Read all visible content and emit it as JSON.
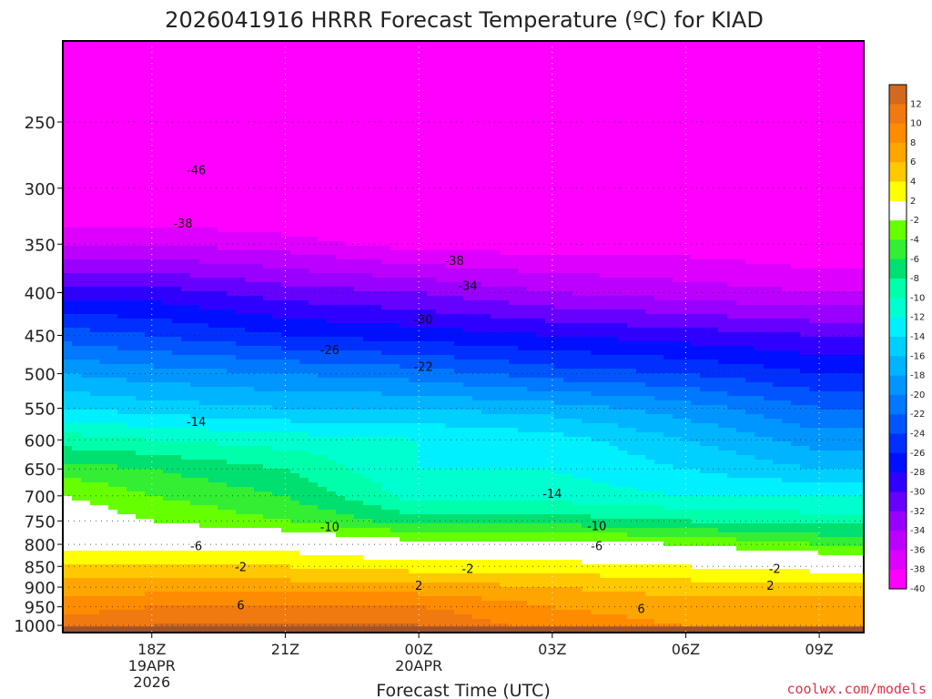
{
  "chart_data": {
    "type": "heatmap",
    "title": "2026041916 HRRR Forecast Temperature (ºC) for KIAD",
    "xlabel": "Forecast Time (UTC)",
    "ylabel": "",
    "credit": "coolwx.com/models",
    "y_scale": "log-pressure",
    "y_axis_inverted": true,
    "ylim": [
      1020,
      200
    ],
    "y_ticks": [
      "250",
      "300",
      "350",
      "400",
      "450",
      "500",
      "550",
      "600",
      "650",
      "700",
      "750",
      "800",
      "850",
      "900",
      "950",
      "1000"
    ],
    "y_tick_values": [
      250,
      300,
      350,
      400,
      450,
      500,
      550,
      600,
      650,
      700,
      750,
      800,
      850,
      900,
      950,
      1000
    ],
    "x_ticks": [
      {
        "hour": 18,
        "label": "18Z",
        "date": "19APR",
        "year": "2026"
      },
      {
        "hour": 21,
        "label": "21Z",
        "date": "",
        "year": ""
      },
      {
        "hour": 24,
        "label": "00Z",
        "date": "20APR",
        "year": ""
      },
      {
        "hour": 27,
        "label": "03Z",
        "date": "",
        "year": ""
      },
      {
        "hour": 30,
        "label": "06Z",
        "date": "",
        "year": ""
      },
      {
        "hour": 33,
        "label": "09Z",
        "date": "",
        "year": ""
      }
    ],
    "xlim": [
      16,
      34
    ],
    "grid": "dotted, on",
    "contour_interval": 4,
    "terrain_color": "#a0522d",
    "profile_levels": [
      200,
      250,
      300,
      350,
      400,
      450,
      500,
      550,
      600,
      650,
      700,
      750,
      800,
      850,
      900,
      950,
      1000
    ],
    "profile_times": [
      16,
      18,
      21,
      24,
      27,
      30,
      33,
      34
    ],
    "temperature_profiles": [
      {
        "hour": 16,
        "values": [
          -52,
          -48,
          -42,
          -36,
          -29,
          -23,
          -18,
          -14,
          -9,
          -5,
          -2,
          0,
          1,
          4,
          7,
          9,
          11
        ]
      },
      {
        "hour": 18,
        "values": [
          -52,
          -48,
          -42,
          -36,
          -29,
          -24,
          -19,
          -15,
          -10,
          -6,
          -4,
          -2,
          1,
          4,
          7,
          10,
          12
        ]
      },
      {
        "hour": 21,
        "values": [
          -53,
          -49,
          -43,
          -37,
          -31,
          -26,
          -20,
          -16,
          -11,
          -8,
          -6,
          -4,
          1,
          4,
          7,
          10,
          12
        ]
      },
      {
        "hour": 24,
        "values": [
          -54,
          -51,
          -46,
          -39,
          -32,
          -27,
          -21,
          -16,
          -12,
          -12,
          -11,
          -7,
          -1,
          3,
          7,
          10,
          12
        ]
      },
      {
        "hour": 27,
        "values": [
          -54,
          -51,
          -46,
          -39,
          -34,
          -28,
          -23,
          -17,
          -13,
          -12,
          -11,
          -7,
          -1,
          3,
          6,
          8,
          9
        ]
      },
      {
        "hour": 30,
        "values": [
          -53,
          -50,
          -46,
          -39,
          -35,
          -29,
          -24,
          -19,
          -16,
          -14,
          -12,
          -8,
          -2,
          2,
          5,
          7,
          8
        ]
      },
      {
        "hour": 33,
        "values": [
          -53,
          -50,
          -46,
          -40,
          -36,
          -30,
          -26,
          -22,
          -19,
          -16,
          -12,
          -9,
          -4,
          1,
          5,
          7,
          8
        ]
      },
      {
        "hour": 34,
        "values": [
          -53,
          -50,
          -46,
          -40,
          -36,
          -30,
          -26,
          -22,
          -19,
          -16,
          -12,
          -9,
          -4,
          1,
          5,
          7,
          8
        ]
      }
    ],
    "contour_labels": [
      {
        "text": "-46",
        "hour": 19.0,
        "pressure": 285
      },
      {
        "text": "-38",
        "hour": 18.7,
        "pressure": 330
      },
      {
        "text": "-38",
        "hour": 24.8,
        "pressure": 366
      },
      {
        "text": "-34",
        "hour": 25.1,
        "pressure": 392
      },
      {
        "text": "-30",
        "hour": 24.1,
        "pressure": 430
      },
      {
        "text": "-26",
        "hour": 22.0,
        "pressure": 468
      },
      {
        "text": "-22",
        "hour": 24.1,
        "pressure": 490
      },
      {
        "text": "-14",
        "hour": 19.0,
        "pressure": 570
      },
      {
        "text": "-14",
        "hour": 27.0,
        "pressure": 695
      },
      {
        "text": "-10",
        "hour": 22.0,
        "pressure": 762
      },
      {
        "text": "-10",
        "hour": 28.0,
        "pressure": 760
      },
      {
        "text": "-6",
        "hour": 19.0,
        "pressure": 803
      },
      {
        "text": "-6",
        "hour": 28.0,
        "pressure": 803
      },
      {
        "text": "-2",
        "hour": 20.0,
        "pressure": 850
      },
      {
        "text": "-2",
        "hour": 25.1,
        "pressure": 855
      },
      {
        "text": "-2",
        "hour": 32.0,
        "pressure": 855
      },
      {
        "text": "2",
        "hour": 24.0,
        "pressure": 895
      },
      {
        "text": "2",
        "hour": 31.9,
        "pressure": 895
      },
      {
        "text": "6",
        "hour": 20.0,
        "pressure": 945
      },
      {
        "text": "6",
        "hour": 29.0,
        "pressure": 955
      }
    ],
    "colorbar": {
      "labels": [
        "12",
        "10",
        "8",
        "6",
        "4",
        "2",
        "-2",
        "-4",
        "-6",
        "-8",
        "-10",
        "-12",
        "-14",
        "-16",
        "-18",
        "-20",
        "-22",
        "-24",
        "-26",
        "-28",
        "-30",
        "-32",
        "-34",
        "-36",
        "-38",
        "-40"
      ],
      "colors": [
        "#d2691e",
        "#f07a10",
        "#ff8c00",
        "#ffa500",
        "#ffc800",
        "#ffff00",
        "#ffffff",
        "#66ff00",
        "#33ee33",
        "#00e070",
        "#00ffaa",
        "#00ffd0",
        "#00f0ff",
        "#00d0ff",
        "#00b4ff",
        "#0096ff",
        "#0078ff",
        "#0055ff",
        "#0030ff",
        "#0010ff",
        "#3000ff",
        "#6600ff",
        "#9900ff",
        "#bb00ff",
        "#dd00ff",
        "#ff00ff"
      ]
    }
  }
}
